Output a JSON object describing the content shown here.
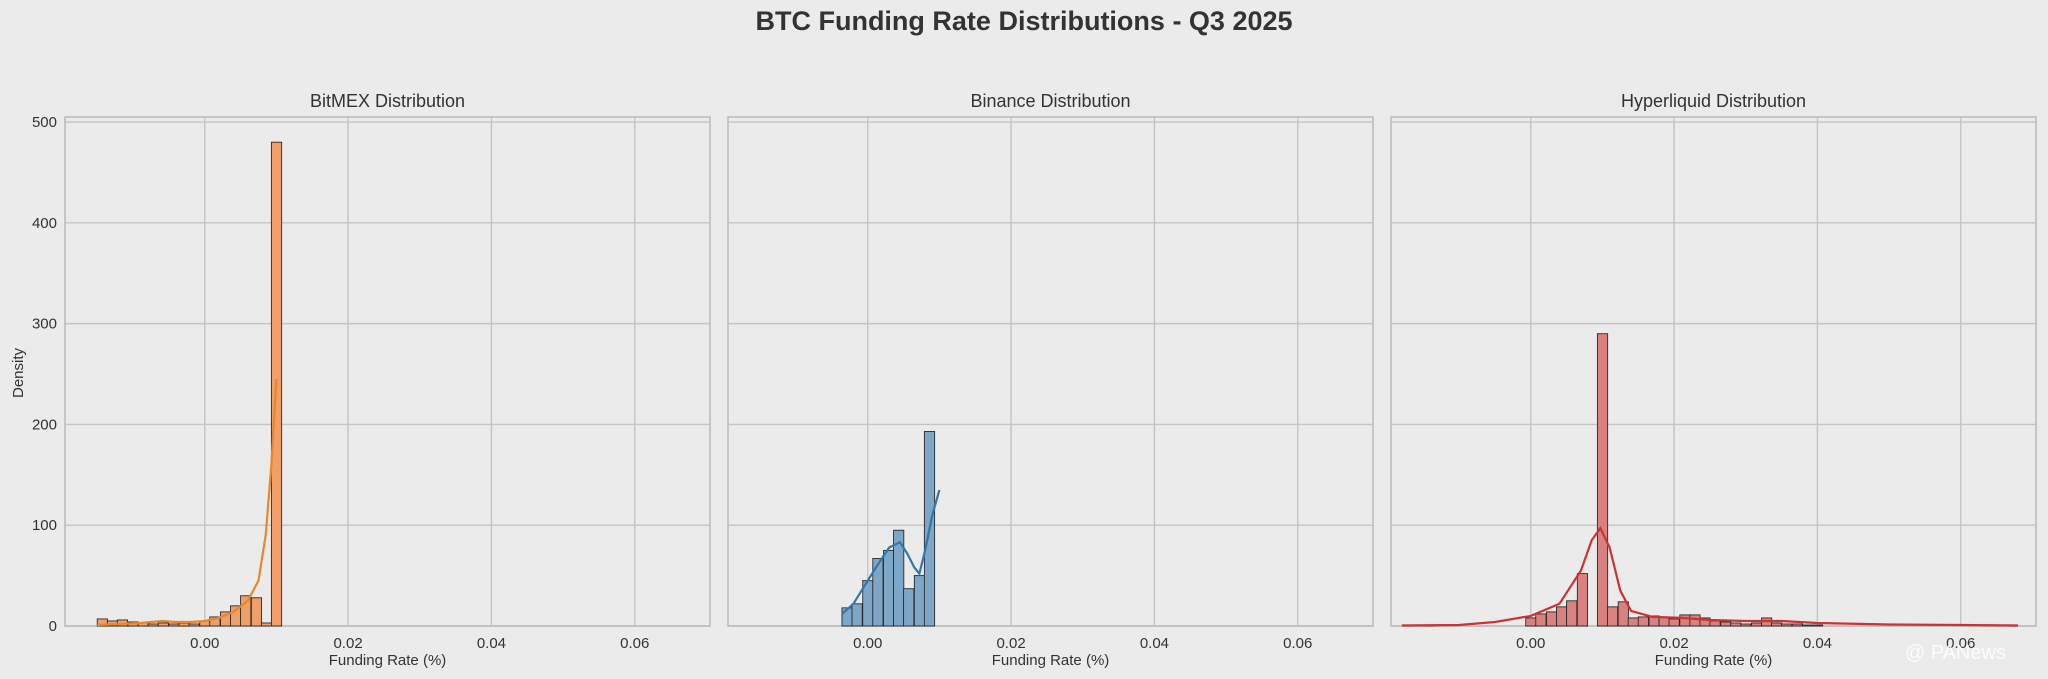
{
  "figure": {
    "title": "BTC Funding Rate Distributions - Q3 2025",
    "ylabel": "Density",
    "watermark": "@ PANews"
  },
  "colors": {
    "background": "#ebebeb",
    "grid": "#c4c4c4",
    "spine": "#bdbdbd",
    "text": "#333333",
    "bar_edge": "#2b2b2b"
  },
  "chart_data": [
    {
      "type": "bar",
      "title": "BitMEX Distribution",
      "xlabel": "Funding Rate (%)",
      "xlim": [
        -0.0195,
        0.0705
      ],
      "ylim": [
        0,
        505
      ],
      "xticks": [
        0.0,
        0.02,
        0.04,
        0.06
      ],
      "yticks": [
        0,
        100,
        200,
        300,
        400,
        500
      ],
      "grid": true,
      "bar_color": "#f0a066",
      "kde_color": "#e8872b",
      "bin_width": 0.00143,
      "bins": [
        {
          "x": -0.015,
          "h": 7
        },
        {
          "x": -0.0136,
          "h": 5
        },
        {
          "x": -0.0122,
          "h": 6
        },
        {
          "x": -0.0107,
          "h": 4
        },
        {
          "x": -0.0093,
          "h": 3
        },
        {
          "x": -0.0079,
          "h": 2
        },
        {
          "x": -0.0065,
          "h": 3
        },
        {
          "x": -0.005,
          "h": 2
        },
        {
          "x": -0.0036,
          "h": 3
        },
        {
          "x": -0.0022,
          "h": 2
        },
        {
          "x": -0.0007,
          "h": 5
        },
        {
          "x": 0.0007,
          "h": 9
        },
        {
          "x": 0.0022,
          "h": 14
        },
        {
          "x": 0.0036,
          "h": 20
        },
        {
          "x": 0.005,
          "h": 30
        },
        {
          "x": 0.0065,
          "h": 28
        },
        {
          "x": 0.0079,
          "h": 3
        },
        {
          "x": 0.0093,
          "h": 480
        }
      ],
      "kde": [
        [
          -0.015,
          1
        ],
        [
          -0.012,
          2
        ],
        [
          -0.009,
          3
        ],
        [
          -0.006,
          5
        ],
        [
          -0.004,
          4
        ],
        [
          -0.002,
          4
        ],
        [
          0.0,
          5
        ],
        [
          0.002,
          8
        ],
        [
          0.004,
          14
        ],
        [
          0.006,
          25
        ],
        [
          0.0075,
          45
        ],
        [
          0.0085,
          90
        ],
        [
          0.0093,
          160
        ],
        [
          0.01,
          245
        ]
      ]
    },
    {
      "type": "bar",
      "title": "Binance Distribution",
      "xlabel": "Funding Rate (%)",
      "xlim": [
        -0.0195,
        0.0705
      ],
      "ylim": [
        0,
        505
      ],
      "xticks": [
        0.0,
        0.02,
        0.04,
        0.06
      ],
      "yticks": [
        0,
        100,
        200,
        300,
        400,
        500
      ],
      "grid": true,
      "bar_color": "#7ea6c7",
      "kde_color": "#3377aa",
      "bin_width": 0.00143,
      "bins": [
        {
          "x": -0.0036,
          "h": 18
        },
        {
          "x": -0.0022,
          "h": 22
        },
        {
          "x": -0.0007,
          "h": 45
        },
        {
          "x": 0.0007,
          "h": 67
        },
        {
          "x": 0.0022,
          "h": 75
        },
        {
          "x": 0.0036,
          "h": 95
        },
        {
          "x": 0.005,
          "h": 37
        },
        {
          "x": 0.0065,
          "h": 50
        },
        {
          "x": 0.0079,
          "h": 193
        }
      ],
      "kde": [
        [
          -0.0036,
          12
        ],
        [
          -0.002,
          22
        ],
        [
          0.0,
          45
        ],
        [
          0.0015,
          62
        ],
        [
          0.003,
          78
        ],
        [
          0.0045,
          83
        ],
        [
          0.0055,
          72
        ],
        [
          0.0065,
          58
        ],
        [
          0.0072,
          52
        ],
        [
          0.008,
          75
        ],
        [
          0.009,
          110
        ],
        [
          0.01,
          135
        ]
      ]
    },
    {
      "type": "bar",
      "title": "Hyperliquid Distribution",
      "xlabel": "Funding Rate (%)",
      "xlim": [
        -0.0195,
        0.0705
      ],
      "ylim": [
        0,
        505
      ],
      "xticks": [
        0.0,
        0.02,
        0.04,
        0.06
      ],
      "yticks": [
        0,
        100,
        200,
        300,
        400,
        500
      ],
      "grid": true,
      "bar_color": "#d98080",
      "kde_color": "#cc3333",
      "bin_width": 0.00143,
      "bins": [
        {
          "x": -0.015,
          "h": 1
        },
        {
          "x": -0.0007,
          "h": 8
        },
        {
          "x": 0.0007,
          "h": 12
        },
        {
          "x": 0.0022,
          "h": 14
        },
        {
          "x": 0.0036,
          "h": 19
        },
        {
          "x": 0.005,
          "h": 25
        },
        {
          "x": 0.0065,
          "h": 52
        },
        {
          "x": 0.0093,
          "h": 290
        },
        {
          "x": 0.0107,
          "h": 19
        },
        {
          "x": 0.0122,
          "h": 24
        },
        {
          "x": 0.0136,
          "h": 8
        },
        {
          "x": 0.015,
          "h": 9
        },
        {
          "x": 0.0165,
          "h": 10
        },
        {
          "x": 0.0179,
          "h": 9
        },
        {
          "x": 0.0193,
          "h": 7
        },
        {
          "x": 0.0208,
          "h": 11
        },
        {
          "x": 0.0222,
          "h": 11
        },
        {
          "x": 0.0236,
          "h": 8
        },
        {
          "x": 0.025,
          "h": 5
        },
        {
          "x": 0.0265,
          "h": 4
        },
        {
          "x": 0.0279,
          "h": 3
        },
        {
          "x": 0.0293,
          "h": 2
        },
        {
          "x": 0.0308,
          "h": 3
        },
        {
          "x": 0.0322,
          "h": 8
        },
        {
          "x": 0.0336,
          "h": 3
        },
        {
          "x": 0.035,
          "h": 2
        },
        {
          "x": 0.0365,
          "h": 2
        },
        {
          "x": 0.0379,
          "h": 1
        },
        {
          "x": 0.0393,
          "h": 1
        },
        {
          "x": 0.065,
          "h": 1
        }
      ],
      "kde": [
        [
          -0.018,
          0.5
        ],
        [
          -0.01,
          1
        ],
        [
          -0.005,
          4
        ],
        [
          0.0,
          10
        ],
        [
          0.004,
          22
        ],
        [
          0.007,
          55
        ],
        [
          0.0085,
          85
        ],
        [
          0.0097,
          97
        ],
        [
          0.011,
          78
        ],
        [
          0.0125,
          35
        ],
        [
          0.014,
          15
        ],
        [
          0.017,
          9
        ],
        [
          0.021,
          8
        ],
        [
          0.025,
          6
        ],
        [
          0.03,
          5
        ],
        [
          0.035,
          5
        ],
        [
          0.04,
          3
        ],
        [
          0.05,
          1.5
        ],
        [
          0.06,
          1
        ],
        [
          0.068,
          0.5
        ]
      ]
    }
  ]
}
